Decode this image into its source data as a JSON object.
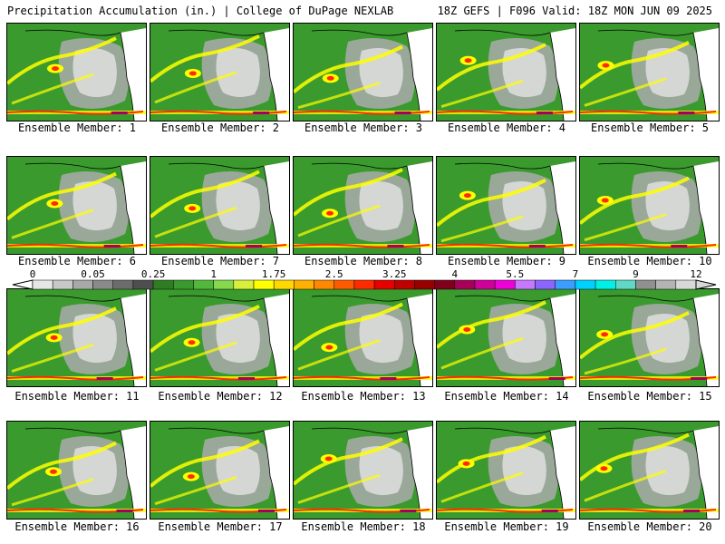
{
  "header": {
    "title": "Precipitation Accumulation (in.) | College of DuPage NEXLAB",
    "run_info": "18Z GEFS | F096 Valid: 18Z MON JUN 09 2025"
  },
  "members": [
    {
      "label": "Ensemble Member: 1"
    },
    {
      "label": "Ensemble Member: 2"
    },
    {
      "label": "Ensemble Member: 3"
    },
    {
      "label": "Ensemble Member: 4"
    },
    {
      "label": "Ensemble Member: 5"
    },
    {
      "label": "Ensemble Member: 6"
    },
    {
      "label": "Ensemble Member: 7"
    },
    {
      "label": "Ensemble Member: 8"
    },
    {
      "label": "Ensemble Member: 9"
    },
    {
      "label": "Ensemble Member: 10"
    },
    {
      "label": "Ensemble Member: 11"
    },
    {
      "label": "Ensemble Member: 12"
    },
    {
      "label": "Ensemble Member: 13"
    },
    {
      "label": "Ensemble Member: 14"
    },
    {
      "label": "Ensemble Member: 15"
    },
    {
      "label": "Ensemble Member: 16"
    },
    {
      "label": "Ensemble Member: 17"
    },
    {
      "label": "Ensemble Member: 18"
    },
    {
      "label": "Ensemble Member: 19"
    },
    {
      "label": "Ensemble Member: 20"
    }
  ],
  "legend": {
    "labels": [
      "0",
      "0.05",
      "0.25",
      "1",
      "1.75",
      "2.5",
      "3.25",
      "4",
      "5.5",
      "7",
      "9",
      "12"
    ],
    "colors": [
      "#e6e6e6",
      "#c8c8c8",
      "#a8a8a8",
      "#8a8a8a",
      "#6c6c6c",
      "#4e4e4e",
      "#2f7d22",
      "#3a9a2e",
      "#52b83c",
      "#86d84c",
      "#d8f03c",
      "#ffff00",
      "#ffd800",
      "#ffb000",
      "#ff8800",
      "#ff5a00",
      "#ff2a00",
      "#e80000",
      "#c00000",
      "#980000",
      "#80001c",
      "#a8005a",
      "#d0009a",
      "#f000d8",
      "#c878ff",
      "#8c64ff",
      "#3c9cff",
      "#00d0ff",
      "#00f0e8",
      "#60d8c8",
      "#909090",
      "#b4b4b4",
      "#d8d8d8"
    ]
  },
  "colors": {
    "dry": "#ffffff",
    "light": "#aaaaaa",
    "base": "#3a9a2e",
    "moderate": "#ffff00",
    "heavy": "#ff2a00",
    "extreme": "#a8005a"
  }
}
